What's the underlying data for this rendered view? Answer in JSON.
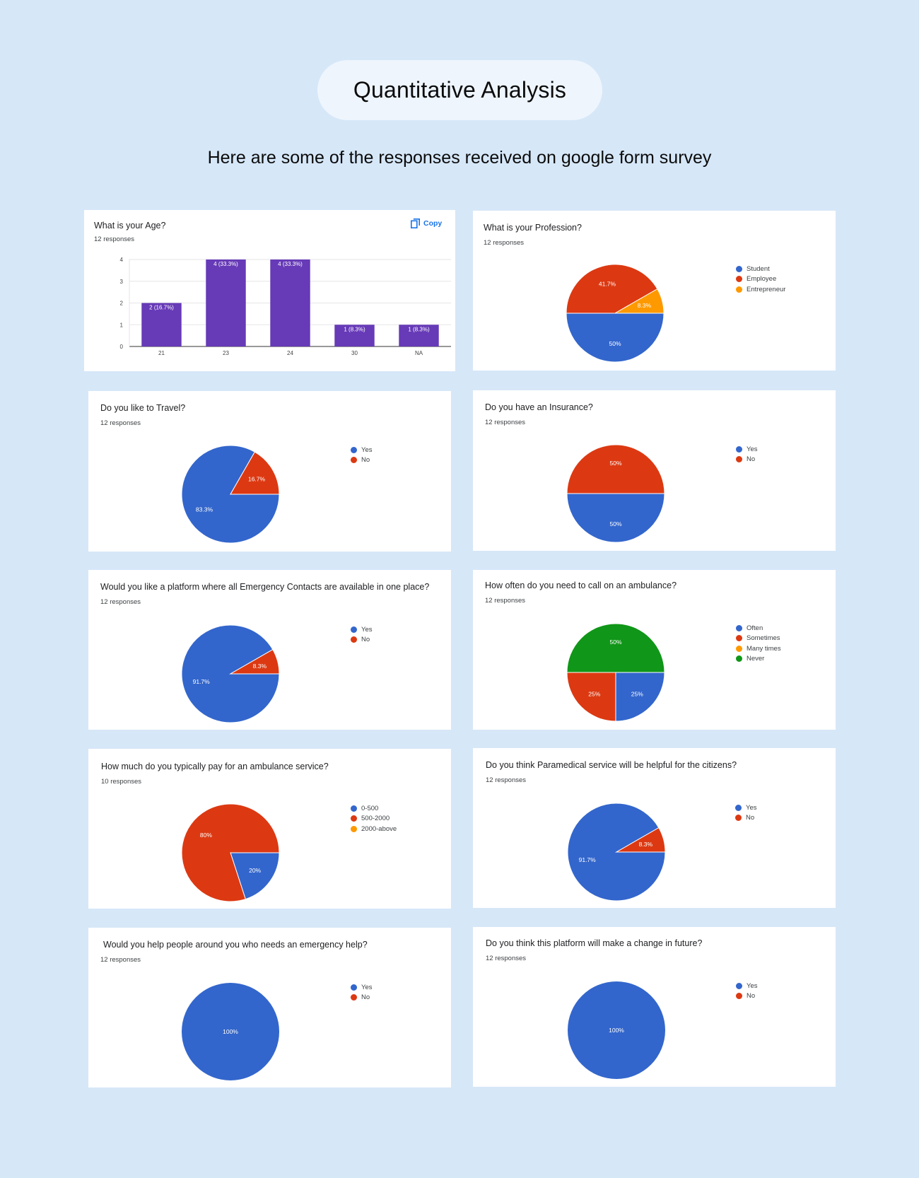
{
  "header": {
    "title": "Quantitative Analysis",
    "subtitle": "Here are some of the responses received on google form survey"
  },
  "colors": {
    "blue": "#3366cc",
    "red": "#dc3912",
    "orange": "#ff9900",
    "green": "#109618",
    "purple": "#673ab7",
    "copy_blue": "#1a73e8"
  },
  "cards": [
    {
      "question": "What is your Age?",
      "responses": "12 responses",
      "copy_label": "Copy",
      "copy_icon": "copy-icon"
    },
    {
      "question": "What is your Profession?",
      "responses": "12 responses"
    },
    {
      "question": "Do you like to Travel?",
      "responses": "12 responses"
    },
    {
      "question": "Do you have an Insurance?",
      "responses": "12 responses"
    },
    {
      "question": "Would you like a platform where all Emergency Contacts are available in one place?",
      "responses": "12 responses"
    },
    {
      "question": "How often do you need to call on an ambulance?",
      "responses": "12 responses"
    },
    {
      "question": "How much do you typically pay for an ambulance service?",
      "responses": "10 responses"
    },
    {
      "question": "Do you think Paramedical service will be helpful for the citizens?",
      "responses": "12 responses"
    },
    {
      "question": "Would you help people around you who needs an emergency help?",
      "responses": "12 responses"
    },
    {
      "question": "Do you think this platform will make a change in future?",
      "responses": "12 responses"
    }
  ],
  "chart_data": [
    {
      "type": "bar",
      "categories": [
        "21",
        "23",
        "24",
        "30",
        "NA"
      ],
      "values": [
        2,
        4,
        4,
        1,
        1
      ],
      "data_labels": [
        "2 (16.7%)",
        "4 (33.3%)",
        "4 (33.3%)",
        "1 (8.3%)",
        "1 (8.3%)"
      ],
      "ylim": [
        0,
        4
      ],
      "yticks": [
        "0",
        "1",
        "2",
        "3",
        "4"
      ],
      "grid": true,
      "color": "#673ab7"
    },
    {
      "type": "pie",
      "legend": [
        "Student",
        "Employee",
        "Entrepreneur"
      ],
      "values": [
        50,
        41.7,
        8.3
      ],
      "labels": [
        "50%",
        "41.7%",
        "8.3%"
      ],
      "colors": [
        "#3366cc",
        "#dc3912",
        "#ff9900"
      ],
      "legend_position": "right"
    },
    {
      "type": "pie",
      "legend": [
        "Yes",
        "No"
      ],
      "values": [
        83.3,
        16.7
      ],
      "labels": [
        "83.3%",
        "16.7%"
      ],
      "colors": [
        "#3366cc",
        "#dc3912"
      ],
      "legend_position": "right"
    },
    {
      "type": "pie",
      "legend": [
        "Yes",
        "No"
      ],
      "values": [
        50,
        50
      ],
      "labels": [
        "50%",
        "50%"
      ],
      "colors": [
        "#3366cc",
        "#dc3912"
      ],
      "legend_position": "right"
    },
    {
      "type": "pie",
      "legend": [
        "Yes",
        "No"
      ],
      "values": [
        91.7,
        8.3
      ],
      "labels": [
        "91.7%",
        "8.3%"
      ],
      "colors": [
        "#3366cc",
        "#dc3912"
      ],
      "legend_position": "right"
    },
    {
      "type": "pie",
      "legend": [
        "Often",
        "Sometimes",
        "Many times",
        "Never"
      ],
      "values": [
        25,
        25,
        0,
        50
      ],
      "labels": [
        "25%",
        "25%",
        "",
        "50%"
      ],
      "colors": [
        "#3366cc",
        "#dc3912",
        "#ff9900",
        "#109618"
      ],
      "legend_position": "right"
    },
    {
      "type": "pie",
      "legend": [
        "0-500",
        "500-2000",
        "2000-above"
      ],
      "values": [
        20,
        80,
        0
      ],
      "labels": [
        "20%",
        "80%",
        ""
      ],
      "colors": [
        "#3366cc",
        "#dc3912",
        "#ff9900"
      ],
      "legend_position": "right"
    },
    {
      "type": "pie",
      "legend": [
        "Yes",
        "No"
      ],
      "values": [
        91.7,
        8.3
      ],
      "labels": [
        "91.7%",
        "8.3%"
      ],
      "colors": [
        "#3366cc",
        "#dc3912"
      ],
      "legend_position": "right"
    },
    {
      "type": "pie",
      "legend": [
        "Yes",
        "No"
      ],
      "values": [
        100,
        0
      ],
      "labels": [
        "100%",
        ""
      ],
      "colors": [
        "#3366cc",
        "#dc3912"
      ],
      "legend_position": "right"
    },
    {
      "type": "pie",
      "legend": [
        "Yes",
        "No"
      ],
      "values": [
        100,
        0
      ],
      "labels": [
        "100%",
        ""
      ],
      "colors": [
        "#3366cc",
        "#dc3912"
      ],
      "legend_position": "right"
    }
  ]
}
